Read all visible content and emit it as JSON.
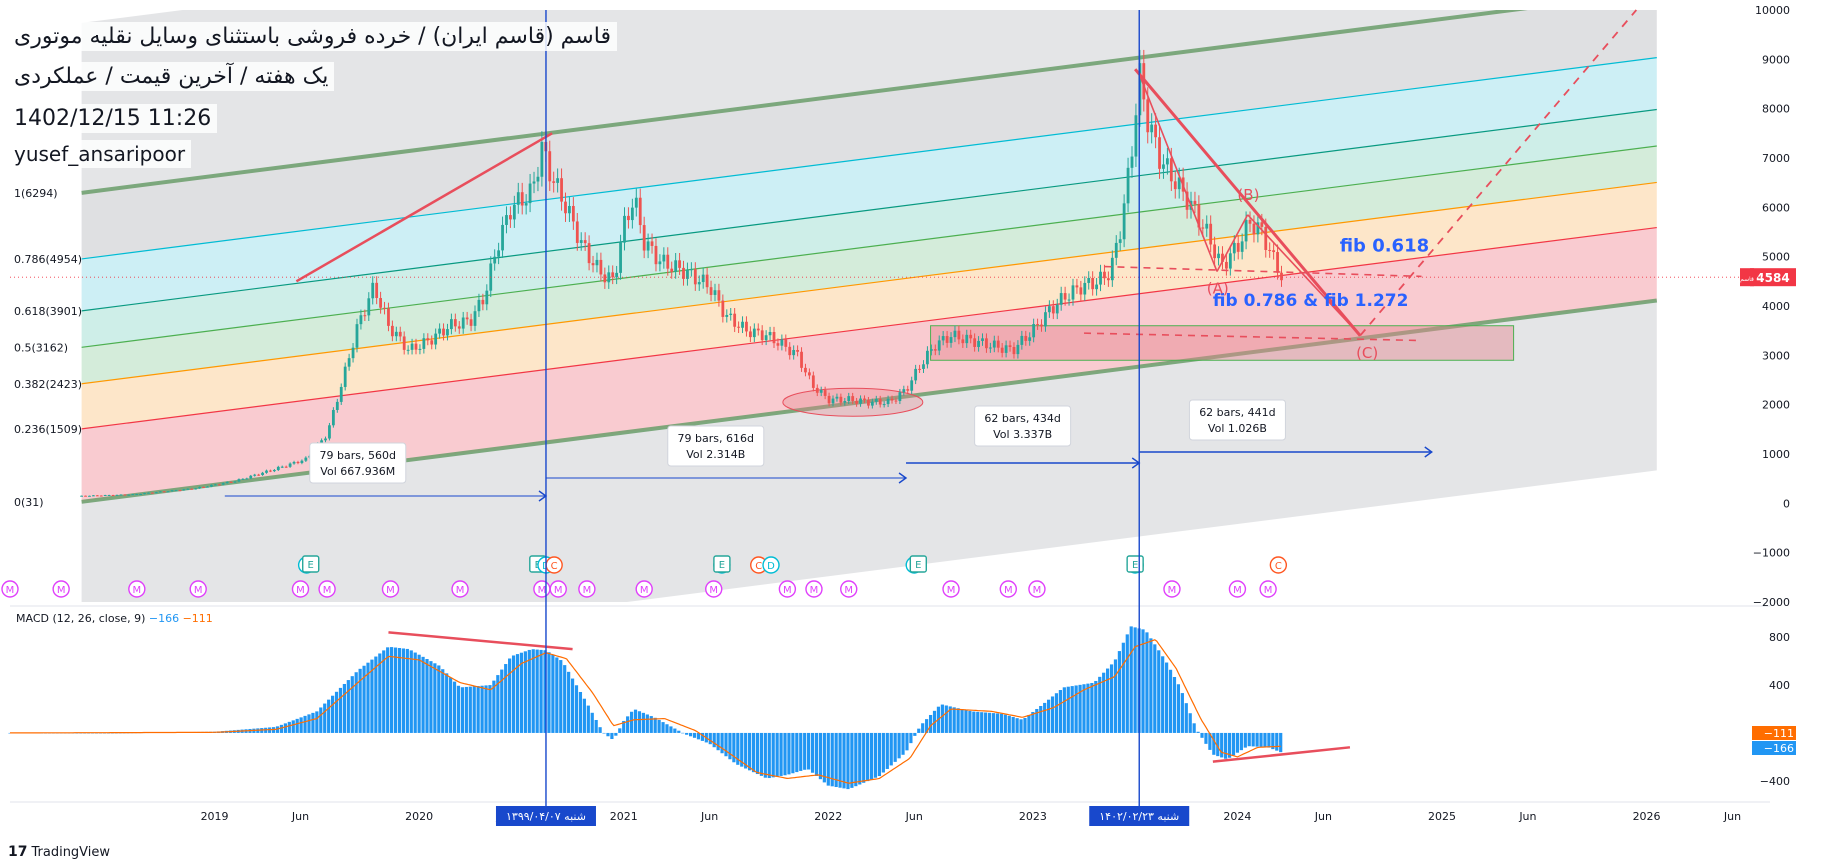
{
  "header": {
    "symbol_line": "قاسم (قاسم ایران) / خرده فروشی باستثنای وسایل نقلیه موتوری",
    "timeframe_line": "یک هفته / آخرین قیمت / عملکردی",
    "date_line": "1402/12/15 11:26",
    "author": "yusef_ansaripoor"
  },
  "branding": {
    "logo_text": "TradingView",
    "logo_glyph": "17"
  },
  "price_tag": {
    "value": "4584",
    "label": "قاسم",
    "color": "#f23645"
  },
  "colors": {
    "bull": "#26a69a",
    "bear": "#ef5350",
    "channel": "#6b9e6b",
    "blue": "#1848cc",
    "macd_hist": "#2196f3",
    "signal": "#ff6d00",
    "red_line": "#e84e5c"
  },
  "chart_data": [
    {
      "type": "candlestick",
      "style": "Heikin Ashi",
      "scale": "linear",
      "ylim": [
        -2000,
        10000
      ],
      "yticks": [
        -2000,
        -1000,
        0,
        1000,
        2000,
        3000,
        4000,
        5000,
        6000,
        7000,
        8000,
        9000,
        10000
      ],
      "ytick_labels": [
        "−2000",
        "−1000",
        "0",
        "1000",
        "2000",
        "3000",
        "4000",
        "5000",
        "6000",
        "7000",
        "8000",
        "9000",
        "10000"
      ],
      "xticks": [
        {
          "t": 2019.0,
          "label": "2019"
        },
        {
          "t": 2019.42,
          "label": "Jun"
        },
        {
          "t": 2020.0,
          "label": "2020"
        },
        {
          "t": 2020.42,
          "label": "Jun"
        },
        {
          "t": 2021.0,
          "label": "2021"
        },
        {
          "t": 2021.42,
          "label": "Jun"
        },
        {
          "t": 2022.0,
          "label": "2022"
        },
        {
          "t": 2022.42,
          "label": "Jun"
        },
        {
          "t": 2023.0,
          "label": "2023"
        },
        {
          "t": 2023.42,
          "label": "Jun"
        },
        {
          "t": 2024.0,
          "label": "2024"
        },
        {
          "t": 2024.42,
          "label": "Jun"
        },
        {
          "t": 2025.0,
          "label": "2025"
        },
        {
          "t": 2025.42,
          "label": "Jun"
        },
        {
          "t": 2026.0,
          "label": "2026"
        },
        {
          "t": 2026.42,
          "label": "Jun"
        }
      ],
      "price_path": [
        [
          2018.35,
          150
        ],
        [
          2018.6,
          180
        ],
        [
          2018.9,
          300
        ],
        [
          2019.1,
          450
        ],
        [
          2019.3,
          700
        ],
        [
          2019.45,
          900
        ],
        [
          2019.55,
          1400
        ],
        [
          2019.62,
          2400
        ],
        [
          2019.7,
          3600
        ],
        [
          2019.78,
          4400
        ],
        [
          2019.85,
          3600
        ],
        [
          2019.95,
          3100
        ],
        [
          2020.05,
          3300
        ],
        [
          2020.15,
          3600
        ],
        [
          2020.25,
          3700
        ],
        [
          2020.32,
          4200
        ],
        [
          2020.38,
          5200
        ],
        [
          2020.45,
          6000
        ],
        [
          2020.55,
          6300
        ],
        [
          2020.6,
          7200
        ],
        [
          2020.65,
          6600
        ],
        [
          2020.72,
          6000
        ],
        [
          2020.8,
          5200
        ],
        [
          2020.88,
          4700
        ],
        [
          2020.95,
          4500
        ],
        [
          2021.0,
          5600
        ],
        [
          2021.05,
          6200
        ],
        [
          2021.1,
          5300
        ],
        [
          2021.18,
          4900
        ],
        [
          2021.3,
          4700
        ],
        [
          2021.42,
          4400
        ],
        [
          2021.5,
          3800
        ],
        [
          2021.6,
          3500
        ],
        [
          2021.7,
          3400
        ],
        [
          2021.78,
          3200
        ],
        [
          2021.85,
          3000
        ],
        [
          2021.92,
          2400
        ],
        [
          2022.0,
          2100
        ],
        [
          2022.1,
          2100
        ],
        [
          2022.2,
          2050
        ],
        [
          2022.3,
          2050
        ],
        [
          2022.38,
          2300
        ],
        [
          2022.45,
          2800
        ],
        [
          2022.52,
          3200
        ],
        [
          2022.6,
          3400
        ],
        [
          2022.7,
          3300
        ],
        [
          2022.8,
          3200
        ],
        [
          2022.9,
          3100
        ],
        [
          2023.0,
          3500
        ],
        [
          2023.08,
          3900
        ],
        [
          2023.16,
          4200
        ],
        [
          2023.24,
          4400
        ],
        [
          2023.32,
          4500
        ],
        [
          2023.38,
          4700
        ],
        [
          2023.43,
          5600
        ],
        [
          2023.48,
          7000
        ],
        [
          2023.52,
          8700
        ],
        [
          2023.56,
          7800
        ],
        [
          2023.62,
          7000
        ],
        [
          2023.7,
          6500
        ],
        [
          2023.78,
          6000
        ],
        [
          2023.86,
          5400
        ],
        [
          2023.92,
          4800
        ],
        [
          2024.0,
          5200
        ],
        [
          2024.06,
          5700
        ],
        [
          2024.12,
          5500
        ],
        [
          2024.18,
          4900
        ],
        [
          2024.22,
          4584
        ]
      ],
      "fib_levels": [
        {
          "ratio": 0,
          "label": "0(31)"
        },
        {
          "ratio": 0.236,
          "label": "0.236(1509)"
        },
        {
          "ratio": 0.382,
          "label": "0.382(2423)"
        },
        {
          "ratio": 0.5,
          "label": "0.5(3162)"
        },
        {
          "ratio": 0.618,
          "label": "0.618(3901)"
        },
        {
          "ratio": 0.786,
          "label": "0.786(4954)"
        },
        {
          "ratio": 1,
          "label": "1(6294)"
        }
      ],
      "measures": [
        {
          "bars": "79 bars, 560d",
          "vol": "Vol 667.936M"
        },
        {
          "bars": "79 bars, 616d",
          "vol": "Vol 2.314B"
        },
        {
          "bars": "62 bars, 434d",
          "vol": "Vol 3.337B"
        },
        {
          "bars": "62 bars, 441d",
          "vol": "Vol 1.026B"
        }
      ],
      "annotations": {
        "fib_0618": "fib 0.618",
        "fib_0786": "fib 0.786  & fib 1.272",
        "wave_a": "(A)",
        "wave_b": "(B)",
        "wave_c": "(C)"
      },
      "events": [
        {
          "t": 2018.0,
          "type": "M"
        },
        {
          "t": 2018.25,
          "type": "M"
        },
        {
          "t": 2018.62,
          "type": "M"
        },
        {
          "t": 2018.92,
          "type": "M"
        },
        {
          "t": 2019.42,
          "type": "M"
        },
        {
          "t": 2019.45,
          "type": "D"
        },
        {
          "t": 2019.47,
          "type": "E"
        },
        {
          "t": 2019.55,
          "type": "M"
        },
        {
          "t": 2019.86,
          "type": "M"
        },
        {
          "t": 2020.2,
          "type": "M"
        },
        {
          "t": 2020.58,
          "type": "E"
        },
        {
          "t": 2020.6,
          "type": "M"
        },
        {
          "t": 2020.62,
          "type": "D"
        },
        {
          "t": 2020.66,
          "type": "C"
        },
        {
          "t": 2020.68,
          "type": "M"
        },
        {
          "t": 2020.82,
          "type": "M"
        },
        {
          "t": 2021.1,
          "type": "M"
        },
        {
          "t": 2021.44,
          "type": "M"
        },
        {
          "t": 2021.48,
          "type": "D"
        },
        {
          "t": 2021.48,
          "type": "E"
        },
        {
          "t": 2021.66,
          "type": "C"
        },
        {
          "t": 2021.72,
          "type": "D"
        },
        {
          "t": 2021.8,
          "type": "M"
        },
        {
          "t": 2021.93,
          "type": "M"
        },
        {
          "t": 2022.1,
          "type": "M"
        },
        {
          "t": 2022.42,
          "type": "D"
        },
        {
          "t": 2022.44,
          "type": "E"
        },
        {
          "t": 2022.6,
          "type": "M"
        },
        {
          "t": 2022.88,
          "type": "M"
        },
        {
          "t": 2023.02,
          "type": "M"
        },
        {
          "t": 2023.5,
          "type": "D"
        },
        {
          "t": 2023.5,
          "type": "E"
        },
        {
          "t": 2023.68,
          "type": "M"
        },
        {
          "t": 2024.0,
          "type": "M"
        },
        {
          "t": 2024.15,
          "type": "M"
        },
        {
          "t": 2024.2,
          "type": "C"
        }
      ],
      "date_labels": [
        "شنبه ۱۳۹۹/۰۴/۰۷",
        "شنبه ۱۴۰۲/۰۲/۲۳"
      ]
    },
    {
      "type": "bar",
      "title": "MACD (12, 26, close, 9)",
      "legend_values": [
        "−166",
        "−111"
      ],
      "ylim": [
        -560,
        1060
      ],
      "yticks": [
        -400,
        0,
        400,
        800
      ],
      "ytick_labels": [
        "−400",
        "",
        "400",
        "800"
      ],
      "last_values": {
        "signal": "−111",
        "macd": "−166"
      },
      "macd_path": [
        [
          2018.0,
          0
        ],
        [
          2018.5,
          0
        ],
        [
          2019.0,
          10
        ],
        [
          2019.3,
          50
        ],
        [
          2019.5,
          180
        ],
        [
          2019.7,
          520
        ],
        [
          2019.85,
          720
        ],
        [
          2019.95,
          700
        ],
        [
          2020.1,
          560
        ],
        [
          2020.2,
          380
        ],
        [
          2020.35,
          400
        ],
        [
          2020.45,
          640
        ],
        [
          2020.55,
          700
        ],
        [
          2020.62,
          690
        ],
        [
          2020.7,
          600
        ],
        [
          2020.82,
          250
        ],
        [
          2020.9,
          0
        ],
        [
          2020.95,
          -60
        ],
        [
          2021.0,
          100
        ],
        [
          2021.05,
          200
        ],
        [
          2021.15,
          130
        ],
        [
          2021.3,
          -10
        ],
        [
          2021.42,
          -90
        ],
        [
          2021.55,
          -260
        ],
        [
          2021.7,
          -380
        ],
        [
          2021.8,
          -350
        ],
        [
          2021.9,
          -300
        ],
        [
          2022.0,
          -440
        ],
        [
          2022.1,
          -470
        ],
        [
          2022.25,
          -360
        ],
        [
          2022.38,
          -160
        ],
        [
          2022.45,
          60
        ],
        [
          2022.55,
          240
        ],
        [
          2022.7,
          180
        ],
        [
          2022.85,
          160
        ],
        [
          2022.95,
          110
        ],
        [
          2023.05,
          240
        ],
        [
          2023.15,
          380
        ],
        [
          2023.3,
          420
        ],
        [
          2023.4,
          600
        ],
        [
          2023.48,
          890
        ],
        [
          2023.55,
          860
        ],
        [
          2023.65,
          600
        ],
        [
          2023.72,
          380
        ],
        [
          2023.8,
          30
        ],
        [
          2023.88,
          -180
        ],
        [
          2023.95,
          -220
        ],
        [
          2024.05,
          -110
        ],
        [
          2024.15,
          -120
        ],
        [
          2024.22,
          -166
        ]
      ],
      "signal_path": [
        [
          2018.0,
          0
        ],
        [
          2019.0,
          5
        ],
        [
          2019.3,
          30
        ],
        [
          2019.5,
          120
        ],
        [
          2019.7,
          420
        ],
        [
          2019.85,
          640
        ],
        [
          2020.0,
          610
        ],
        [
          2020.2,
          420
        ],
        [
          2020.35,
          360
        ],
        [
          2020.5,
          580
        ],
        [
          2020.62,
          670
        ],
        [
          2020.72,
          620
        ],
        [
          2020.85,
          330
        ],
        [
          2020.95,
          60
        ],
        [
          2021.05,
          110
        ],
        [
          2021.2,
          120
        ],
        [
          2021.35,
          20
        ],
        [
          2021.5,
          -150
        ],
        [
          2021.65,
          -330
        ],
        [
          2021.8,
          -380
        ],
        [
          2021.95,
          -350
        ],
        [
          2022.1,
          -420
        ],
        [
          2022.25,
          -380
        ],
        [
          2022.4,
          -210
        ],
        [
          2022.5,
          60
        ],
        [
          2022.6,
          200
        ],
        [
          2022.8,
          180
        ],
        [
          2022.95,
          130
        ],
        [
          2023.1,
          210
        ],
        [
          2023.25,
          360
        ],
        [
          2023.4,
          470
        ],
        [
          2023.5,
          720
        ],
        [
          2023.6,
          780
        ],
        [
          2023.7,
          540
        ],
        [
          2023.82,
          120
        ],
        [
          2023.92,
          -160
        ],
        [
          2024.0,
          -200
        ],
        [
          2024.1,
          -120
        ],
        [
          2024.22,
          -111
        ]
      ]
    }
  ]
}
